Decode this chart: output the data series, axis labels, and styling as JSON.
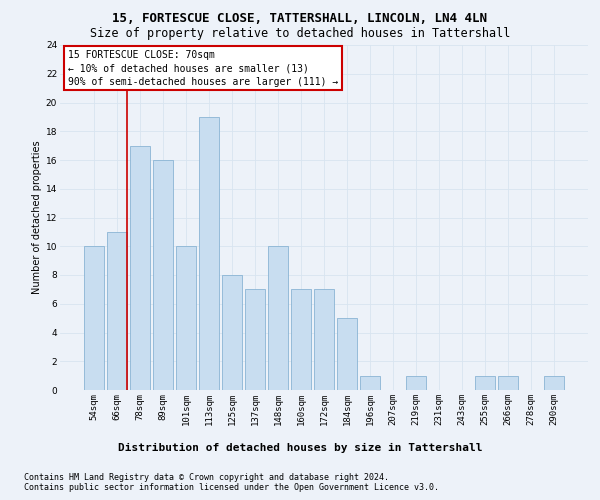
{
  "title1": "15, FORTESCUE CLOSE, TATTERSHALL, LINCOLN, LN4 4LN",
  "title2": "Size of property relative to detached houses in Tattershall",
  "xlabel": "Distribution of detached houses by size in Tattershall",
  "ylabel": "Number of detached properties",
  "categories": [
    "54sqm",
    "66sqm",
    "78sqm",
    "89sqm",
    "101sqm",
    "113sqm",
    "125sqm",
    "137sqm",
    "148sqm",
    "160sqm",
    "172sqm",
    "184sqm",
    "196sqm",
    "207sqm",
    "219sqm",
    "231sqm",
    "243sqm",
    "255sqm",
    "266sqm",
    "278sqm",
    "290sqm"
  ],
  "values": [
    10,
    11,
    17,
    16,
    10,
    19,
    8,
    7,
    10,
    7,
    7,
    5,
    1,
    0,
    1,
    0,
    0,
    1,
    1,
    0,
    1
  ],
  "bar_color": "#c8ddf0",
  "bar_edge_color": "#8ab4d4",
  "grid_color": "#d8e4f0",
  "background_color": "#edf2f9",
  "annotation_box_color": "#ffffff",
  "annotation_box_edge": "#cc0000",
  "vline_color": "#cc0000",
  "annotation_text": "15 FORTESCUE CLOSE: 70sqm\n← 10% of detached houses are smaller (13)\n90% of semi-detached houses are larger (111) →",
  "ylim": [
    0,
    24
  ],
  "yticks": [
    0,
    2,
    4,
    6,
    8,
    10,
    12,
    14,
    16,
    18,
    20,
    22,
    24
  ],
  "footer1": "Contains HM Land Registry data © Crown copyright and database right 2024.",
  "footer2": "Contains public sector information licensed under the Open Government Licence v3.0.",
  "title1_fontsize": 9,
  "title2_fontsize": 8.5,
  "xlabel_fontsize": 8,
  "ylabel_fontsize": 7,
  "tick_fontsize": 6.5,
  "annotation_fontsize": 7,
  "footer_fontsize": 6
}
